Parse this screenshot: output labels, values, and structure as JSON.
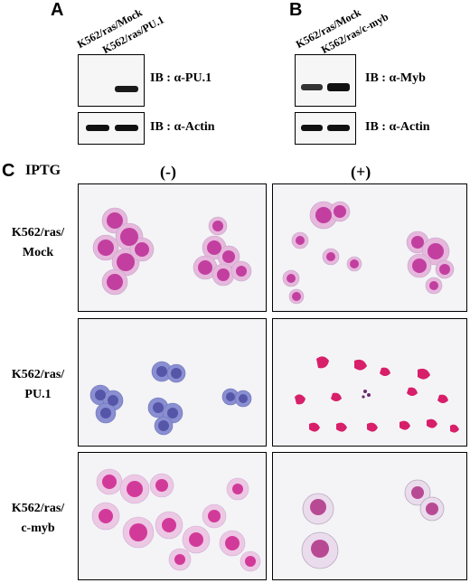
{
  "panel_a": {
    "letter": "A",
    "lanes": [
      "K562/ras/Mock",
      "K562/ras/PU.1"
    ],
    "ib_top": "IB : α-PU.1",
    "ib_bottom": "IB : α-Actin"
  },
  "panel_b": {
    "letter": "B",
    "lanes": [
      "K562/ras/Mock",
      "K562/ras/c-myb"
    ],
    "ib_top": "IB : α-Myb",
    "ib_bottom": "IB : α-Actin"
  },
  "panel_c": {
    "letter": "C",
    "iptg_label": "IPTG",
    "columns": [
      "(-)",
      "(+)"
    ],
    "rows": [
      {
        "label_line1": "K562/ras/",
        "label_line2": "Mock"
      },
      {
        "label_line1": "K562/ras/",
        "label_line2": "PU.1"
      },
      {
        "label_line1": "K562/ras/",
        "label_line2": "c-myb"
      }
    ]
  },
  "colors": {
    "stain_magenta": "#d23a9a",
    "stain_pink": "#e6a8d2",
    "stain_blue": "#7a7fc8",
    "stain_red": "#d81f6a"
  }
}
